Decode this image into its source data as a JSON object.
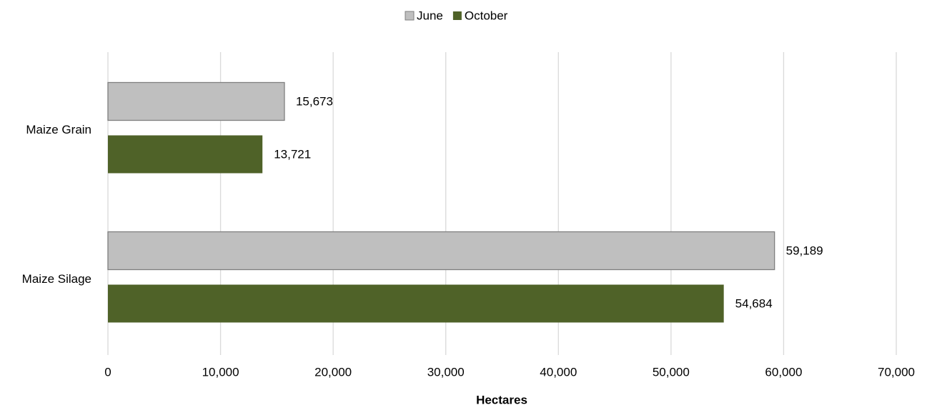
{
  "chart_data": {
    "type": "bar",
    "orientation": "horizontal",
    "categories": [
      "Maize Grain",
      "Maize Silage"
    ],
    "series": [
      {
        "name": "June",
        "color": "#bfbfbf",
        "values": [
          15673,
          59189
        ],
        "value_labels": [
          "15,673",
          "59,189"
        ]
      },
      {
        "name": "October",
        "color": "#4f6228",
        "values": [
          13721,
          54684
        ],
        "value_labels": [
          "13,721",
          "54,684"
        ]
      }
    ],
    "xlabel": "Hectares",
    "xlim": [
      0,
      70000
    ],
    "xticks": [
      0,
      {
        "value": 10000,
        "label": "10,000"
      },
      {
        "value": 20000,
        "label": "20,000"
      },
      {
        "value": 30000,
        "label": "30,000"
      },
      {
        "value": 40000,
        "label": "40,000"
      },
      {
        "value": 50000,
        "label": "50,000"
      },
      {
        "value": 60000,
        "label": "60,000"
      },
      {
        "value": 70000,
        "label": "70,000"
      }
    ],
    "grid": true,
    "legend": "top"
  }
}
